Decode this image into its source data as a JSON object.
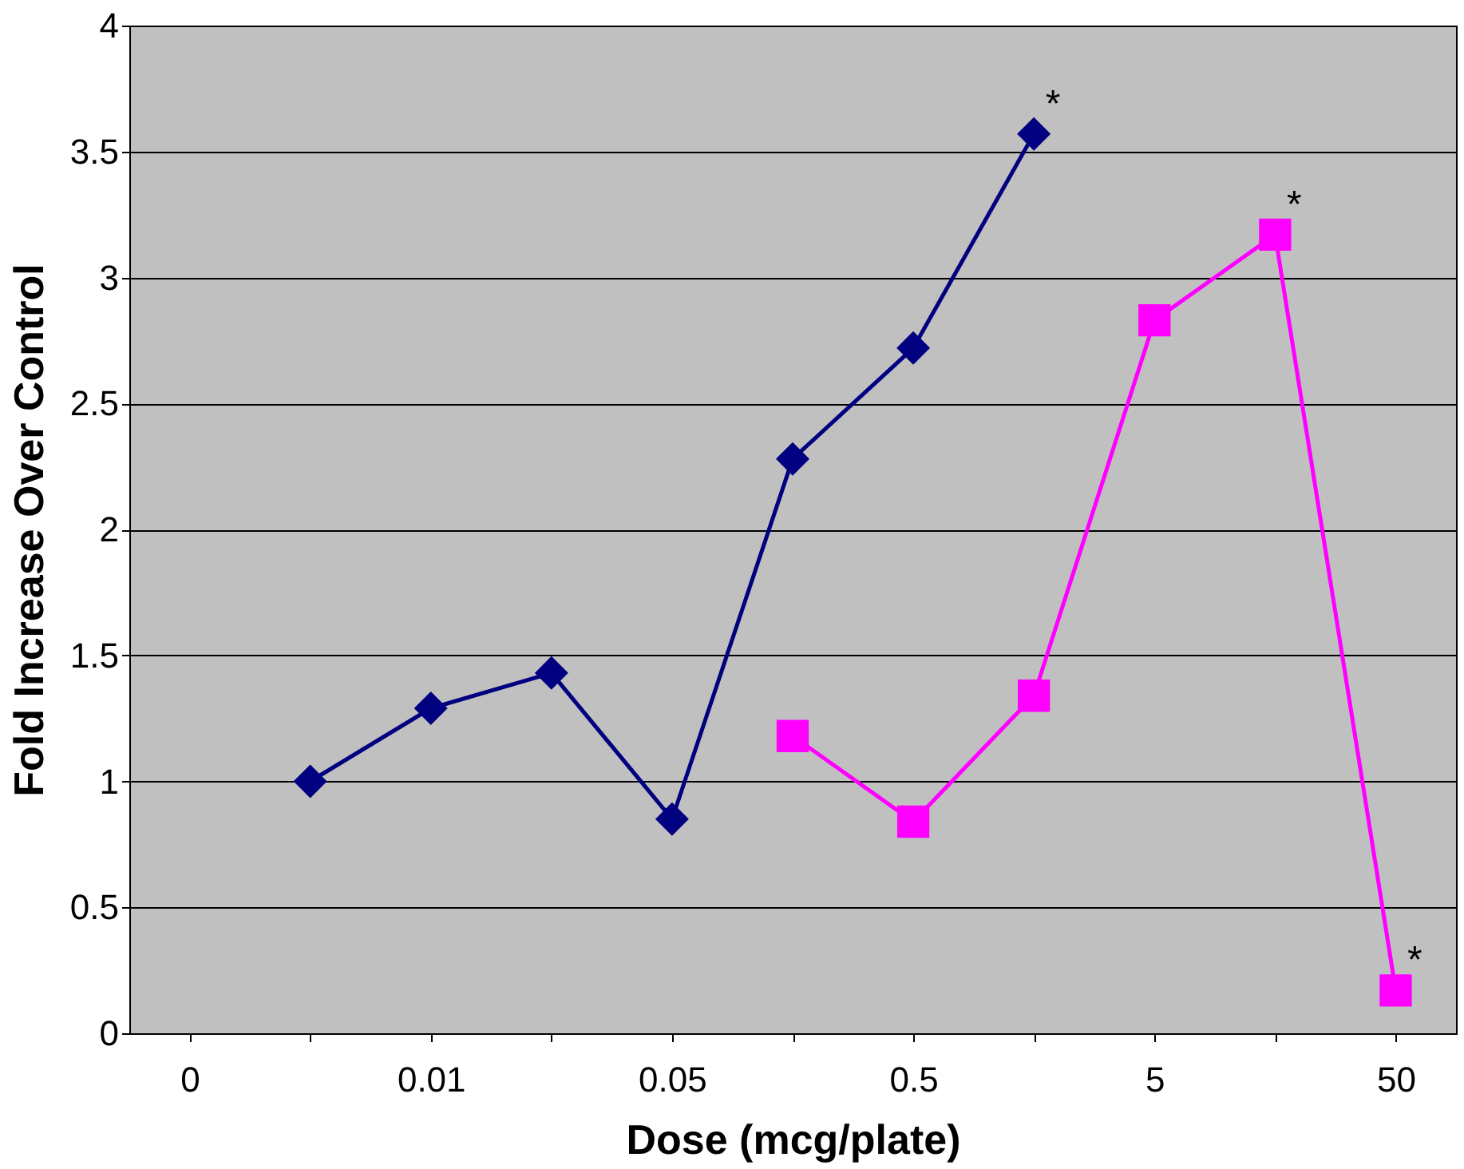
{
  "chart_data": {
    "type": "line",
    "xlabel": "Dose (mcg/plate)",
    "ylabel": "Fold Increase Over Control",
    "categories": [
      "0",
      null,
      "0.01",
      null,
      "0.05",
      null,
      "0.5",
      null,
      "5",
      null,
      "50"
    ],
    "series": [
      {
        "color": "#000080",
        "marker": "diamond",
        "values": [
          null,
          1.0,
          1.29,
          1.43,
          0.85,
          2.28,
          2.72,
          3.57,
          null,
          null,
          null
        ],
        "value_labels": [
          null,
          null,
          null,
          null,
          null,
          null,
          null,
          "*",
          null,
          null,
          null
        ]
      },
      {
        "color": "#ff00ff",
        "marker": "square",
        "values": [
          null,
          null,
          null,
          null,
          null,
          1.18,
          0.84,
          1.34,
          2.83,
          3.17,
          0.17
        ],
        "value_labels": [
          null,
          null,
          null,
          null,
          null,
          null,
          null,
          null,
          null,
          "*",
          "*"
        ]
      }
    ],
    "ylim": [
      0,
      4
    ],
    "yticks": [
      0,
      0.5,
      1,
      1.5,
      2,
      2.5,
      3,
      3.5,
      4
    ],
    "grid": "y",
    "line_style": "solid"
  }
}
